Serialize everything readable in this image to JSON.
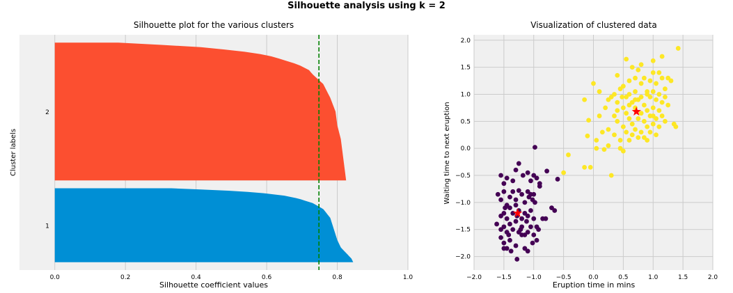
{
  "suptitle": "Silhouette analysis using k = 2",
  "chart_data": [
    {
      "type": "bar",
      "subtype": "silhouette",
      "title": "Silhouette plot for the various clusters",
      "xlabel": "Silhouette coefficient values",
      "ylabel": "Cluster labels",
      "xlim": [
        -0.1,
        1.0
      ],
      "xticks": [
        "0.0",
        "0.2",
        "0.4",
        "0.6",
        "0.8",
        "1.0"
      ],
      "xtick_values": [
        0.0,
        0.2,
        0.4,
        0.6,
        0.8,
        1.0
      ],
      "cluster_labels": [
        "1",
        "2"
      ],
      "grid": true,
      "average_line": {
        "value": 0.748,
        "color": "#008000",
        "style": "dashed"
      },
      "clusters": [
        {
          "label": "1",
          "color": "#008fd5",
          "size": 95,
          "profile": [
            [
              0.0,
              0.845
            ],
            [
              0.05,
              0.84
            ],
            [
              0.1,
              0.83
            ],
            [
              0.15,
              0.82
            ],
            [
              0.2,
              0.81
            ],
            [
              0.3,
              0.8
            ],
            [
              0.45,
              0.79
            ],
            [
              0.6,
              0.78
            ],
            [
              0.72,
              0.76
            ],
            [
              0.8,
              0.73
            ],
            [
              0.86,
              0.69
            ],
            [
              0.9,
              0.65
            ],
            [
              0.94,
              0.58
            ],
            [
              0.97,
              0.48
            ],
            [
              1.0,
              0.33
            ]
          ]
        },
        {
          "label": "2",
          "color": "#fc4f30",
          "size": 177,
          "profile": [
            [
              0.0,
              0.825
            ],
            [
              0.1,
              0.82
            ],
            [
              0.2,
              0.815
            ],
            [
              0.3,
              0.81
            ],
            [
              0.4,
              0.8
            ],
            [
              0.5,
              0.795
            ],
            [
              0.6,
              0.78
            ],
            [
              0.7,
              0.76
            ],
            [
              0.77,
              0.73
            ],
            [
              0.8,
              0.72
            ],
            [
              0.84,
              0.69
            ],
            [
              0.88,
              0.64
            ],
            [
              0.91,
              0.6
            ],
            [
              0.94,
              0.52
            ],
            [
              0.97,
              0.4
            ],
            [
              1.0,
              0.18
            ]
          ]
        }
      ]
    },
    {
      "type": "scatter",
      "title": "Visualization of clustered data",
      "xlabel": "Eruption time in mins",
      "ylabel": "Waiting time to next eruption",
      "xlim": [
        -2.0,
        2.0
      ],
      "ylim": [
        -2.25,
        2.1
      ],
      "xticks": [
        "−2.0",
        "−1.5",
        "−1.0",
        "−0.5",
        "0.0",
        "0.5",
        "1.0",
        "1.5",
        "2.0"
      ],
      "xtick_values": [
        -2.0,
        -1.5,
        -1.0,
        -0.5,
        0.0,
        0.5,
        1.0,
        1.5,
        2.0
      ],
      "yticks": [
        "−2.0",
        "−1.5",
        "−1.0",
        "−0.5",
        "0.0",
        "0.5",
        "1.0",
        "1.5",
        "2.0"
      ],
      "ytick_values": [
        -2.0,
        -1.5,
        -1.0,
        -0.5,
        0.0,
        0.5,
        1.0,
        1.5,
        2.0
      ],
      "grid": true,
      "series": [
        {
          "color": "#440154",
          "points": [
            [
              -1.55,
              -0.5
            ],
            [
              -1.5,
              -0.65
            ],
            [
              -1.45,
              -0.55
            ],
            [
              -1.35,
              -0.6
            ],
            [
              -1.3,
              -0.4
            ],
            [
              -1.25,
              -0.28
            ],
            [
              -1.18,
              -0.5
            ],
            [
              -1.1,
              -0.45
            ],
            [
              -1.05,
              -0.6
            ],
            [
              -1.0,
              -0.5
            ],
            [
              -0.98,
              0.02
            ],
            [
              -0.95,
              -0.55
            ],
            [
              -0.9,
              -0.65
            ],
            [
              -0.78,
              -0.42
            ],
            [
              -0.6,
              -0.57
            ],
            [
              -1.6,
              -0.85
            ],
            [
              -1.55,
              -0.95
            ],
            [
              -1.5,
              -0.8
            ],
            [
              -1.45,
              -1.05
            ],
            [
              -1.4,
              -0.9
            ],
            [
              -1.35,
              -0.8
            ],
            [
              -1.3,
              -0.95
            ],
            [
              -1.25,
              -0.78
            ],
            [
              -1.2,
              -0.85
            ],
            [
              -1.15,
              -1.0
            ],
            [
              -1.1,
              -0.8
            ],
            [
              -1.08,
              -0.9
            ],
            [
              -1.05,
              -0.85
            ],
            [
              -1.02,
              -0.95
            ],
            [
              -1.0,
              -0.85
            ],
            [
              -0.98,
              -1.0
            ],
            [
              -0.9,
              -0.7
            ],
            [
              -0.7,
              -1.1
            ],
            [
              -0.65,
              -1.15
            ],
            [
              -1.55,
              -1.25
            ],
            [
              -1.5,
              -1.2
            ],
            [
              -1.45,
              -1.3
            ],
            [
              -1.4,
              -1.1
            ],
            [
              -1.35,
              -1.2
            ],
            [
              -1.3,
              -1.05
            ],
            [
              -1.25,
              -1.15
            ],
            [
              -1.2,
              -1.3
            ],
            [
              -1.15,
              -1.2
            ],
            [
              -1.1,
              -1.25
            ],
            [
              -1.05,
              -1.15
            ],
            [
              -1.0,
              -1.3
            ],
            [
              -0.95,
              -1.45
            ],
            [
              -0.85,
              -1.3
            ],
            [
              -0.8,
              -1.3
            ],
            [
              -1.62,
              -1.4
            ],
            [
              -1.55,
              -1.5
            ],
            [
              -1.5,
              -1.45
            ],
            [
              -1.45,
              -1.55
            ],
            [
              -1.4,
              -1.4
            ],
            [
              -1.35,
              -1.5
            ],
            [
              -1.3,
              -1.35
            ],
            [
              -1.25,
              -1.55
            ],
            [
              -1.2,
              -1.45
            ],
            [
              -1.15,
              -1.6
            ],
            [
              -1.1,
              -1.55
            ],
            [
              -1.05,
              -1.45
            ],
            [
              -1.0,
              -1.6
            ],
            [
              -0.92,
              -1.5
            ],
            [
              -1.55,
              -1.65
            ],
            [
              -1.5,
              -1.75
            ],
            [
              -1.45,
              -1.85
            ],
            [
              -1.4,
              -1.7
            ],
            [
              -1.38,
              -1.9
            ],
            [
              -1.3,
              -1.8
            ],
            [
              -1.28,
              -2.05
            ],
            [
              -1.2,
              -1.6
            ],
            [
              -1.15,
              -1.85
            ],
            [
              -1.1,
              -1.9
            ],
            [
              -1.02,
              -1.75
            ],
            [
              -1.5,
              -1.85
            ],
            [
              -1.42,
              -1.6
            ],
            [
              -1.22,
              -1.5
            ],
            [
              -1.12,
              -1.35
            ],
            [
              -0.95,
              -1.7
            ],
            [
              -1.48,
              -1.1
            ],
            [
              -1.28,
              -1.25
            ]
          ]
        },
        {
          "color": "#fde725",
          "points": [
            [
              -0.5,
              -0.45
            ],
            [
              -0.42,
              -0.12
            ],
            [
              -0.15,
              -0.35
            ],
            [
              -0.05,
              -0.35
            ],
            [
              -0.1,
              0.23
            ],
            [
              -0.08,
              0.52
            ],
            [
              -0.15,
              0.9
            ],
            [
              0.0,
              1.2
            ],
            [
              0.05,
              0.15
            ],
            [
              0.05,
              0.0
            ],
            [
              0.1,
              1.05
            ],
            [
              0.1,
              0.6
            ],
            [
              0.15,
              0.3
            ],
            [
              0.18,
              -0.02
            ],
            [
              0.2,
              0.75
            ],
            [
              0.25,
              0.9
            ],
            [
              0.25,
              0.35
            ],
            [
              0.3,
              -0.5
            ],
            [
              0.3,
              0.95
            ],
            [
              0.35,
              1.0
            ],
            [
              0.35,
              0.6
            ],
            [
              0.35,
              0.25
            ],
            [
              0.4,
              1.35
            ],
            [
              0.4,
              0.85
            ],
            [
              0.4,
              0.5
            ],
            [
              0.45,
              0.15
            ],
            [
              0.45,
              1.1
            ],
            [
              0.48,
              0.95
            ],
            [
              0.5,
              0.75
            ],
            [
              0.5,
              0.4
            ],
            [
              0.5,
              -0.05
            ],
            [
              0.55,
              1.65
            ],
            [
              0.55,
              0.95
            ],
            [
              0.55,
              0.65
            ],
            [
              0.55,
              0.3
            ],
            [
              0.6,
              1.25
            ],
            [
              0.6,
              1.0
            ],
            [
              0.6,
              0.55
            ],
            [
              0.6,
              0.15
            ],
            [
              0.65,
              1.5
            ],
            [
              0.65,
              0.85
            ],
            [
              0.65,
              0.45
            ],
            [
              0.7,
              1.3
            ],
            [
              0.7,
              1.05
            ],
            [
              0.7,
              0.75
            ],
            [
              0.7,
              0.35
            ],
            [
              0.75,
              1.45
            ],
            [
              0.75,
              0.9
            ],
            [
              0.75,
              0.55
            ],
            [
              0.75,
              0.2
            ],
            [
              0.8,
              1.55
            ],
            [
              0.8,
              1.2
            ],
            [
              0.8,
              0.95
            ],
            [
              0.8,
              0.65
            ],
            [
              0.8,
              0.3
            ],
            [
              0.85,
              1.3
            ],
            [
              0.85,
              0.8
            ],
            [
              0.85,
              0.5
            ],
            [
              0.9,
              1.05
            ],
            [
              0.9,
              0.7
            ],
            [
              0.9,
              0.4
            ],
            [
              0.9,
              0.15
            ],
            [
              0.95,
              1.25
            ],
            [
              0.95,
              0.95
            ],
            [
              0.95,
              0.6
            ],
            [
              0.95,
              0.3
            ],
            [
              1.0,
              1.62
            ],
            [
              1.0,
              1.4
            ],
            [
              1.0,
              1.05
            ],
            [
              1.0,
              0.75
            ],
            [
              1.0,
              0.45
            ],
            [
              1.05,
              1.2
            ],
            [
              1.05,
              0.9
            ],
            [
              1.05,
              0.55
            ],
            [
              1.05,
              0.25
            ],
            [
              1.1,
              1.4
            ],
            [
              1.1,
              1.0
            ],
            [
              1.1,
              0.7
            ],
            [
              1.1,
              0.4
            ],
            [
              1.15,
              1.7
            ],
            [
              1.15,
              1.3
            ],
            [
              1.15,
              0.85
            ],
            [
              1.15,
              0.6
            ],
            [
              1.2,
              1.1
            ],
            [
              1.2,
              0.95
            ],
            [
              1.2,
              0.5
            ],
            [
              1.25,
              1.3
            ],
            [
              1.25,
              0.8
            ],
            [
              1.3,
              1.25
            ],
            [
              1.35,
              0.45
            ],
            [
              1.38,
              0.4
            ],
            [
              1.42,
              1.85
            ],
            [
              0.25,
              0.05
            ],
            [
              0.45,
              0.0
            ],
            [
              0.6,
              0.8
            ],
            [
              0.7,
              0.9
            ],
            [
              0.9,
              1.0
            ],
            [
              1.0,
              0.6
            ],
            [
              0.85,
              0.2
            ],
            [
              0.65,
              0.25
            ],
            [
              0.5,
              1.15
            ],
            [
              0.4,
              0.7
            ]
          ]
        }
      ],
      "centroids": [
        {
          "x": -1.27,
          "y": -1.2,
          "color": "#ff0000",
          "marker": "star"
        },
        {
          "x": 0.72,
          "y": 0.68,
          "color": "#ff0000",
          "marker": "star"
        }
      ]
    }
  ]
}
